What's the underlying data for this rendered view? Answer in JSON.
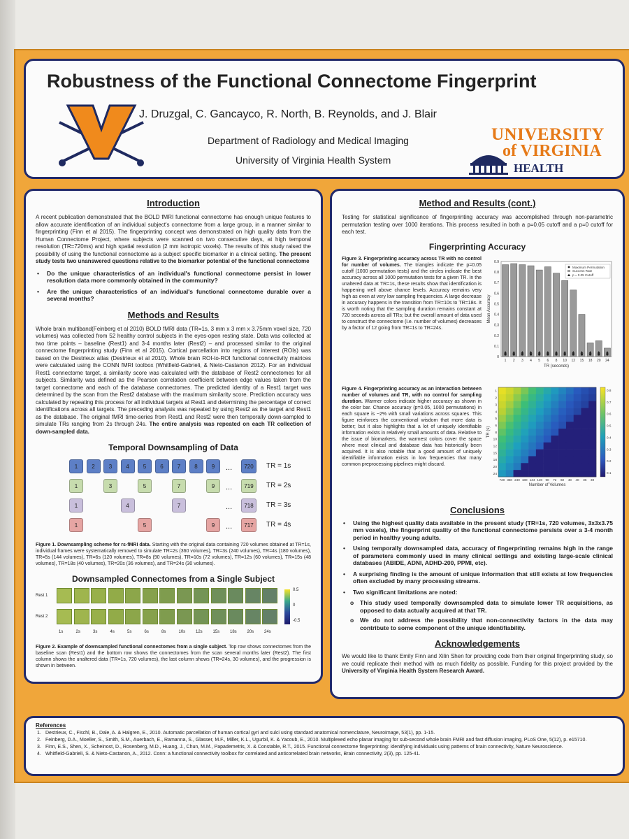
{
  "poster": {
    "title": "Robustness of the Functional Connectome Fingerprint",
    "authors": "J. Druzgal, C. Gancayco, R. North, B. Reynolds, and J. Blair",
    "department": "Department of Radiology and Medical Imaging",
    "system": "University of Virginia Health System",
    "logo": {
      "line1": "UNIVERSITY",
      "line2": "of VIRGINIA",
      "line3": "HEALTH SYSTEM"
    }
  },
  "introduction": {
    "heading": "Introduction",
    "body": "A recent publication demonstrated that the BOLD fMRI functional connectome has enough unique features to allow accurate identification of an individual subject's connectome from a large group, in a manner similar to fingerprinting (Finn et al 2015). The fingerprinting concept was demonstrated on high quality data from the Human Connectome Project, where subjects were scanned on two consecutive days, at high temporal resolution (TR=720ms) and high spatial resolution (2 mm isotropic voxels). The results of this study raised the possibility of using the functional connectome as a subject specific biomarker in a clinical setting.",
    "emphasis": "The present study tests two unanswered questions relative to the biomarker potential of the functional connectome",
    "questions": [
      "Do the unique characteristics of an individual's functional connectome persist in lower resolution data more commonly obtained in the community?",
      "Are the unique characteristics of an individual's functional connectome durable over a several months?"
    ]
  },
  "methods": {
    "heading": "Methods and Results",
    "body": "Whole brain multiband(Feinberg et al 2010) BOLD fMRI data (TR=1s, 3 mm x 3 mm x 3.75mm voxel size, 720 volumes) was collected from 52 healthy control subjects in the eyes-open resting state. Data was collected at two time points – baseline (Rest1) and 3-4 months later (Rest2) – and processed similar to the original connectome fingerprinting study (Finn et al 2015). Cortical parcellation into regions of interest (ROIs) was based on the Destrieux atlas (Destrieux et al 2010). Whole brain ROI-to-ROI functional connectivity matrices were calculated using the CONN fMRI toolbox (Whitfield-Gabrieli, & Nieto-Castanon 2012). For an individual Rest1 connectome target, a similarity score was calculated with the database of Rest2 connectomes for all subjects. Similarity was defined as the Pearson correlation coefficient between edge values taken from the target connectome and each of the database connectomes. The predicted identity of a Rest1 target was determined by the scan from the Rest2 database with the maximum similarity score. Prediction accuracy was calculated by repeating this process for all individual targets at Rest1 and determining the percentage of correct identifications across all targets. The preceding analysis was repeated by using Rest2 as the target and Rest1 as the database. The original fMRI time-series from Rest1 and Rest2 were then temporally down-sampled to simulate TRs ranging from 2s through 24s.",
    "emphasis": "The entire analysis was repeated on each TR collection of down-sampled data."
  },
  "downsampling": {
    "title": "Temporal Downsampling of Data",
    "ellipsis": "...",
    "rows": [
      {
        "label": "TR = 1s",
        "color": "#5d7fc6",
        "frames": [
          "1",
          "2",
          "3",
          "4",
          "5",
          "6",
          "7",
          "8",
          "9"
        ],
        "last": "720"
      },
      {
        "label": "TR = 2s",
        "color": "#c7dcae",
        "frames": [
          "1",
          "3",
          "5",
          "7",
          "9"
        ],
        "last": "719"
      },
      {
        "label": "TR = 3s",
        "color": "#c9bfdc",
        "frames": [
          "1",
          "4",
          "7"
        ],
        "last": "718"
      },
      {
        "label": "TR = 4s",
        "color": "#e6a5a3",
        "frames": [
          "1",
          "5",
          "9"
        ],
        "last": "717"
      }
    ],
    "caption_label": "Figure 1. Downsampling scheme for rs-fMRI data.",
    "caption": "Starting with the original data containing 720 volumes obtained at TR=1s, individual frames were systematically removed to simulate TR=2s (360 volumes), TR=3s (240 volumes), TR=4s (180 volumes), TR=5s (144 volumes), TR=6s (120 volumes), TR=8s (90 volumes), TR=10s (72 volumes), TR=12s (60 volumes), TR=15s (48 volumes), TR=18s (40 volumes), TR=20s (36 volumes), and TR=24s (30 volumes)."
  },
  "connectomes": {
    "title": "Downsampled Connectomes from a Single Subject",
    "row_labels": [
      "Rest 1",
      "Rest 2"
    ],
    "columns": [
      "1s",
      "2s",
      "3s",
      "4s",
      "5s",
      "6s",
      "8s",
      "10s",
      "12s",
      "15s",
      "18s",
      "20s",
      "24s"
    ],
    "colorbar": [
      "0.5",
      "0",
      "-0.5"
    ],
    "caption_label": "Figure 2. Example of downsampled functional connectomes from a single subject.",
    "caption": "Top row shows connectomes from the baseline scan (Rest1) and the bottom row shows the connectomes from the scan several months later (Rest2). The first column shows the unaltered data (TR=1s, 720 volumes), the last column shows (TR=24s, 30 volumes), and the progression is shown in between."
  },
  "methods_cont": {
    "heading": "Method and Results (cont.)",
    "body": "Testing for statistical significance of fingerprinting accuracy was accomplished through non-parametric permutation testing over 1000 iterations. This process resulted in both a p=0.05 cutoff and a p=0 cutoff for each test.",
    "accuracy_heading": "Fingerprinting Accuracy"
  },
  "figure3": {
    "caption_label": "Figure 3. Fingerprinting accuracy across TR with no control for number of volumes.",
    "caption": "The triangles indicate the p=0.05 cutoff (1000 permutation tests) and the circles indicate the best accuracy across all 1000 permutation tests for a given TR. In the unaltered data at TR=1s, these results show that identification is happening well above chance levels. Accuracy remains very high as even at very low sampling frequencies. A large decrease in accuracy happens in the transition from TR=10s to TR=18s. It is worth noting that the sampling duration remains constant at 720 seconds across all TRs; but the overall amount of data used to construct the connectome (i.e. number of volumes) decreases by a factor of 12 going from TR=1s to TR=24s."
  },
  "figure4": {
    "caption_label": "Figure 4. Fingerprinting accuracy as an interaction between number of volumes and TR, with no control for sampling duration.",
    "caption": "Warmer colors indicate higher accuracy as shown in the color bar. Chance accuracy (p=0.05, 1000 permutations) in each square is ~2% with small variations across squares. This figure reinforces the conventional wisdom that more data is better; but it also highlights that a lot of uniquely identifiable information exists in relatively small amounts of data. Relative to the issue of biomarkers, the warmest colors cover the space where most clinical and database data has historically been acquired. It is also notable that a good amount of uniquely identifiable information exists in low frequencies that many common preprocessing pipelines might discard.",
    "xlabel": "Number of Volumes",
    "ylabel": "TR (s)",
    "x_ticks": [
      "720",
      "360",
      "240",
      "180",
      "144",
      "120",
      "90",
      "72",
      "60",
      "48",
      "40",
      "36",
      "30"
    ],
    "y_ticks": [
      "1",
      "2",
      "3",
      "4",
      "5",
      "6",
      "8",
      "10",
      "12",
      "15",
      "18",
      "20",
      "24"
    ],
    "colorbar": [
      "0.8",
      "0.7",
      "0.6",
      "0.5",
      "0.4",
      "0.3",
      "0.2",
      "0.1"
    ]
  },
  "chart_data": [
    {
      "type": "bar",
      "ylabel": "Mean Accuracy",
      "xlabel": "TR (seconds)",
      "categories": [
        "1",
        "2",
        "3",
        "4",
        "5",
        "6",
        "8",
        "10",
        "12",
        "15",
        "18",
        "20",
        "24"
      ],
      "ylim": [
        0,
        0.9
      ],
      "yticks": [
        "0",
        "0.1",
        "0.2",
        "0.3",
        "0.4",
        "0.5",
        "0.6",
        "0.7",
        "0.8",
        "0.9"
      ],
      "series": [
        {
          "name": "Maximum Permutation",
          "values": [
            0.02,
            0.02,
            0.02,
            0.02,
            0.02,
            0.02,
            0.02,
            0.02,
            0.02,
            0.02,
            0.02,
            0.02,
            0.02
          ]
        },
        {
          "name": "Success Rate",
          "values": [
            0.87,
            0.88,
            0.87,
            0.86,
            0.82,
            0.85,
            0.79,
            0.72,
            0.63,
            0.4,
            0.13,
            0.15,
            0.08
          ]
        },
        {
          "name": "p = 0.05 Cutoff",
          "values": [
            0.04,
            0.04,
            0.04,
            0.04,
            0.04,
            0.04,
            0.04,
            0.04,
            0.04,
            0.04,
            0.04,
            0.04,
            0.04
          ]
        }
      ],
      "legend": "top-right"
    },
    {
      "type": "heatmap",
      "xlabel": "Number of Volumes",
      "ylabel": "TR (s)",
      "note": "lower-left triangle filled; warmer colors (yellow) where more volumes at short TR",
      "colorbar_range": [
        0,
        0.85
      ]
    }
  ],
  "conclusions": {
    "heading": "Conclusions",
    "items": [
      "Using the highest quality data available in the present study (TR=1s, 720 volumes, 3x3x3.75 mm voxels), the fingerprint quality of the functional connectome persists over a 3-4 month period in healthy young adults.",
      "Using temporally downsampled data, accuracy of fingerprinting remains high in the range of parameters commonly used in many clinical settings and existing large-scale clinical databases (ABIDE, ADNI, ADHD-200, PPMI, etc).",
      "A surprising finding is the amount of unique information that still exists at low frequencies often excluded by many processing streams.",
      "Two significant limitations are noted:"
    ],
    "subitems": [
      "This study used temporally downsampled data to simulate lower TR acquisitions, as opposed to data actually acquired at that TR.",
      "We do not address the possibility that non-connectivity factors in the data may contribute to some component of the unique identifiability."
    ]
  },
  "acknowledgements": {
    "heading": "Acknowledgements",
    "body": "We would like to thank Emily Finn and Xilin Shen for providing code from their original fingerprinting study, so we could replicate their method with as much fidelity as possible. Funding for this project provided by the",
    "emphasis": "University of Virginia Health System Research Award."
  },
  "references": {
    "heading": "References",
    "items": [
      "Destrieux, C., Fischl, B., Dale, A. & Halgren, E., 2010. Automatic parcellation of human cortical gyri and sulci using standard anatomical nomenclature, NeuroImage, 53(1), pp. 1-15.",
      "Feinberg, D.A., Moeller, S., Smith, S.M., Auerbach, E., Ramanna, S., Glasser, M.F., Miller, K.L., Ugurbil, K. & Yacoub, E., 2010. Multiplexed echo planar imaging for sub-second whole brain FMRI and fast diffusion imaging, PLoS One, 5(12), p. e15710.",
      "Finn, E.S., Shen, X., Scheinost, D., Rosenberg, M.D., Huang, J., Chun, M.M., Papademetris, X. & Constable, R.T., 2015. Functional connectome fingerprinting: identifying individuals using patterns of brain connectivity, Nature Neuroscience.",
      "Whitfield-Gabrieli, S. & Nieto-Castanon, A., 2012. Conn: a functional connectivity toolbox for correlated and anticorrelated brain networks, Brain connectivity, 2(3), pp. 125-41."
    ]
  }
}
